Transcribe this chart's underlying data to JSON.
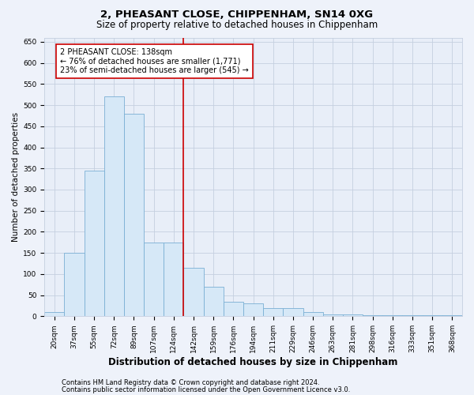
{
  "title": "2, PHEASANT CLOSE, CHIPPENHAM, SN14 0XG",
  "subtitle": "Size of property relative to detached houses in Chippenham",
  "xlabel": "Distribution of detached houses by size in Chippenham",
  "ylabel": "Number of detached properties",
  "categories": [
    "20sqm",
    "37sqm",
    "55sqm",
    "72sqm",
    "89sqm",
    "107sqm",
    "124sqm",
    "142sqm",
    "159sqm",
    "176sqm",
    "194sqm",
    "211sqm",
    "229sqm",
    "246sqm",
    "263sqm",
    "281sqm",
    "298sqm",
    "316sqm",
    "333sqm",
    "351sqm",
    "368sqm"
  ],
  "values": [
    10,
    150,
    345,
    520,
    480,
    175,
    175,
    115,
    70,
    35,
    30,
    20,
    20,
    10,
    5,
    5,
    2,
    2,
    2,
    2,
    2
  ],
  "bar_color": "#d6e8f7",
  "bar_edge_color": "#7aafd4",
  "vline_color": "#cc0000",
  "annotation_text": "2 PHEASANT CLOSE: 138sqm\n← 76% of detached houses are smaller (1,771)\n23% of semi-detached houses are larger (545) →",
  "annotation_box_color": "#ffffff",
  "annotation_box_edge": "#cc0000",
  "ylim": [
    0,
    660
  ],
  "yticks": [
    0,
    50,
    100,
    150,
    200,
    250,
    300,
    350,
    400,
    450,
    500,
    550,
    600,
    650
  ],
  "footnote1": "Contains HM Land Registry data © Crown copyright and database right 2024.",
  "footnote2": "Contains public sector information licensed under the Open Government Licence v3.0.",
  "bg_color": "#eef2fa",
  "plot_bg_color": "#e8eef8",
  "grid_color": "#c5cfe0",
  "title_fontsize": 9.5,
  "subtitle_fontsize": 8.5,
  "xlabel_fontsize": 8.5,
  "ylabel_fontsize": 7.5,
  "tick_fontsize": 6.5,
  "annotation_fontsize": 7.0,
  "footnote_fontsize": 6.0
}
